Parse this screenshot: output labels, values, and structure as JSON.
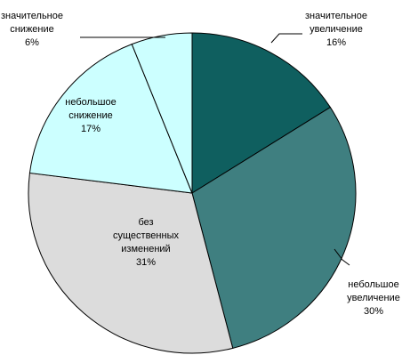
{
  "chart_data": {
    "type": "pie",
    "title": "",
    "slices": [
      {
        "label": [
          "значительное",
          "увеличение"
        ],
        "value": 16,
        "value_text": "16%",
        "color": "#0f5f5f"
      },
      {
        "label": [
          "небольшое",
          "увеличение"
        ],
        "value": 30,
        "value_text": "30%",
        "color": "#3f7f80"
      },
      {
        "label": [
          "без",
          "существенных",
          "изменений"
        ],
        "value": 31,
        "value_text": "31%",
        "color": "#dcdcdc"
      },
      {
        "label": [
          "небольшое",
          "снижение"
        ],
        "value": 17,
        "value_text": "17%",
        "color": "#ccffff"
      },
      {
        "label": [
          "значительное",
          "снижение"
        ],
        "value": 6,
        "value_text": "6%",
        "color": "#ccffff"
      }
    ]
  }
}
